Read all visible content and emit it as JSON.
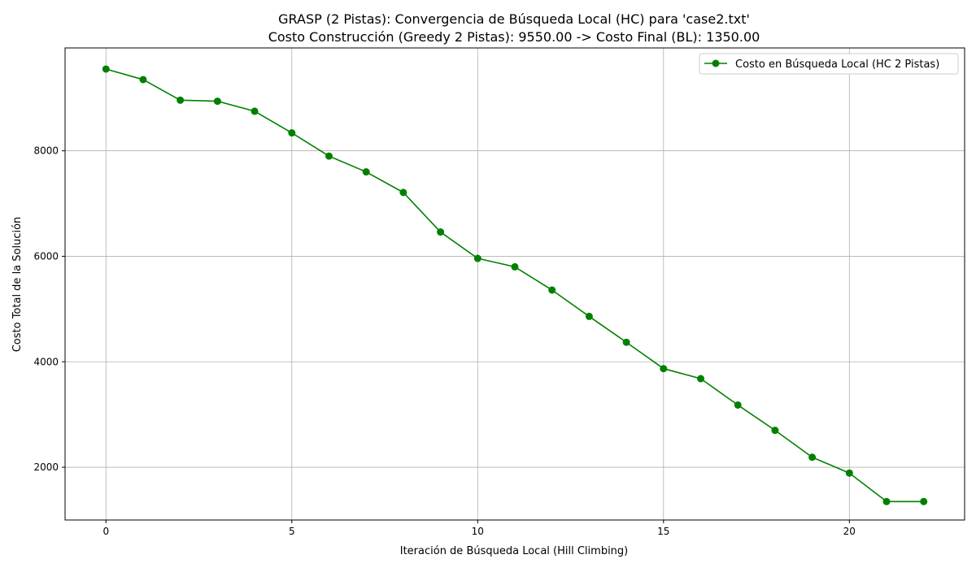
{
  "chart_data": {
    "type": "line",
    "title": "GRASP (2 Pistas): Convergencia de Búsqueda Local (HC) para 'case2.txt'",
    "subtitle": "Costo Construcción (Greedy 2 Pistas): 9550.00 -> Costo Final (BL): 1350.00",
    "xlabel": "Iteración de Búsqueda Local (Hill Climbing)",
    "ylabel": "Costo Total de la Solución",
    "xlim": [
      -1.1,
      23.1
    ],
    "ylim": [
      1000,
      9950
    ],
    "xticks": [
      0,
      5,
      10,
      15,
      20
    ],
    "yticks": [
      2000,
      4000,
      6000,
      8000
    ],
    "grid": true,
    "legend_position": "top-right",
    "series": [
      {
        "name": "Costo en Búsqueda Local (HC 2 Pistas)",
        "color": "#008000",
        "marker": "circle",
        "x": [
          0,
          1,
          2,
          3,
          4,
          5,
          6,
          7,
          8,
          9,
          10,
          11,
          12,
          13,
          14,
          15,
          16,
          17,
          18,
          19,
          20,
          21,
          22
        ],
        "y": [
          9550,
          9350,
          8960,
          8940,
          8750,
          8340,
          7900,
          7600,
          7210,
          6460,
          5960,
          5800,
          5360,
          4860,
          4370,
          3870,
          3680,
          3180,
          2700,
          2190,
          1890,
          1350,
          1350
        ]
      }
    ]
  }
}
